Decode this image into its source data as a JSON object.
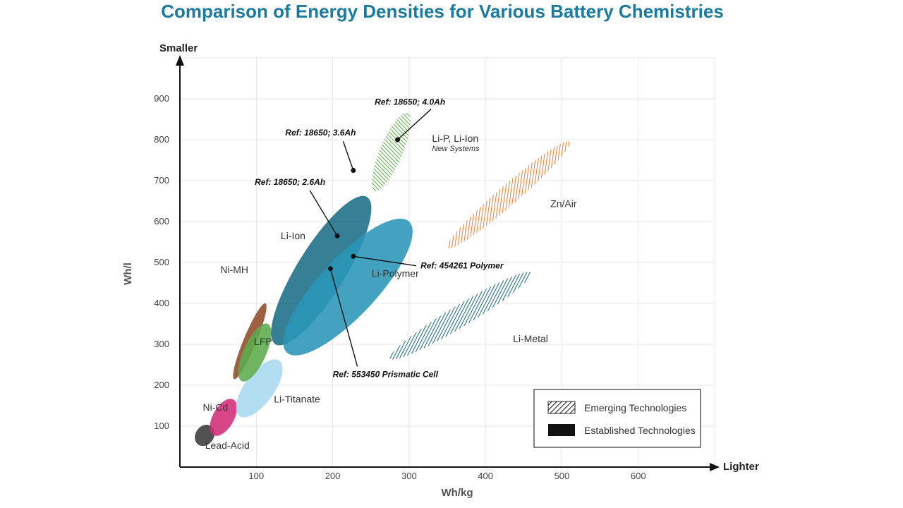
{
  "chart_data": {
    "type": "scatter",
    "title": "Comparison of Energy Densities for Various  Battery Chemistries",
    "xlabel": "Wh/kg",
    "ylabel": "Wh/l",
    "x_end_label": "Lighter",
    "y_end_label": "Smaller",
    "xlim": [
      0,
      700
    ],
    "ylim": [
      0,
      1000
    ],
    "x_ticks": [
      100,
      200,
      300,
      400,
      500,
      600
    ],
    "y_ticks": [
      100,
      200,
      300,
      400,
      500,
      600,
      700,
      800,
      900
    ],
    "grid": true,
    "regions": [
      {
        "name": "Lead-Acid",
        "emerging": false,
        "color": "#3a3a3a",
        "p1": [
          24,
          55
        ],
        "p2": [
          41,
          100
        ],
        "width": 26,
        "label_at": [
          33,
          45
        ]
      },
      {
        "name": "Ni-Cd",
        "emerging": false,
        "color": "#d22c76",
        "p1": [
          44,
          78
        ],
        "p2": [
          70,
          165
        ],
        "width": 30,
        "label_at": [
          30,
          138
        ]
      },
      {
        "name": "Li-Titanate",
        "emerging": false,
        "color": "#a8d9ef",
        "p1": [
          78,
          125
        ],
        "p2": [
          130,
          260
        ],
        "width": 42,
        "label_at": [
          123,
          158
        ]
      },
      {
        "name": "Ni-MH",
        "emerging": false,
        "color": "#8f4a26",
        "p1": [
          71,
          215
        ],
        "p2": [
          112,
          400
        ],
        "width": 18,
        "label_at": [
          53,
          474
        ]
      },
      {
        "name": "LFP",
        "emerging": false,
        "color": "#5cac4c",
        "p1": [
          81,
          210
        ],
        "p2": [
          115,
          350
        ],
        "width": 32,
        "label_at": [
          97,
          298
        ]
      },
      {
        "name": "Li-Ion",
        "emerging": false,
        "color": "#1a6e87",
        "p1": [
          125,
          300
        ],
        "p2": [
          245,
          660
        ],
        "width": 68,
        "label_at": [
          132,
          557
        ]
      },
      {
        "name": "Li-Polymer",
        "emerging": false,
        "color": "#2a95b8",
        "p1": [
          140,
          280
        ],
        "p2": [
          300,
          600
        ],
        "width": 82,
        "label_at": [
          251,
          465
        ]
      },
      {
        "name": "Li-P, Li-Ion",
        "subtitle": "New Systems",
        "emerging": true,
        "color": "#5eb04e",
        "p1": [
          255,
          675
        ],
        "p2": [
          298,
          865
        ],
        "width": 32,
        "label_at": [
          330,
          795
        ]
      },
      {
        "name": "Zn/Air",
        "emerging": true,
        "color": "#ef7e35",
        "p1": [
          350,
          535
        ],
        "p2": [
          510,
          795
        ],
        "width": 28,
        "label_at": [
          485,
          635
        ]
      },
      {
        "name": "Li-Metal",
        "emerging": true,
        "color": "#1f6a80",
        "p1": [
          275,
          265
        ],
        "p2": [
          460,
          475
        ],
        "width": 30,
        "label_at": [
          436,
          305
        ]
      }
    ],
    "references": [
      {
        "text": "Ref: 18650; 4.0Ah",
        "point": [
          285,
          800
        ],
        "text_at": [
          255,
          885
        ]
      },
      {
        "text": "Ref: 18650; 3.6Ah",
        "point": [
          227,
          725
        ],
        "text_at": [
          138,
          810
        ]
      },
      {
        "text": "Ref: 18650; 2.6Ah",
        "point": [
          206,
          565
        ],
        "text_at": [
          98,
          690
        ]
      },
      {
        "text": "Ref: 454261 Polymer",
        "point": [
          227,
          515
        ],
        "text_at": [
          315,
          485
        ]
      },
      {
        "text": "Ref: 553450 Prismatic Cell",
        "point": [
          197,
          485
        ],
        "text_at": [
          200,
          220
        ]
      }
    ],
    "legend": {
      "position": "bottom-right",
      "items": [
        {
          "label": "Emerging Technologies",
          "style": "hatched"
        },
        {
          "label": "Established Technologies",
          "style": "solid"
        }
      ]
    }
  }
}
